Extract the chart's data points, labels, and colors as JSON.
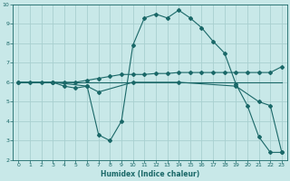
{
  "xlabel": "Humidex (Indice chaleur)",
  "ylabel": "",
  "bg_color": "#c8e8e8",
  "grid_color": "#a8d0d0",
  "line_color": "#1a6868",
  "xlim": [
    -0.5,
    23.5
  ],
  "ylim": [
    2,
    10
  ],
  "xticks": [
    0,
    1,
    2,
    3,
    4,
    5,
    6,
    7,
    8,
    9,
    10,
    11,
    12,
    13,
    14,
    15,
    16,
    17,
    18,
    19,
    20,
    21,
    22,
    23
  ],
  "yticks": [
    2,
    3,
    4,
    5,
    6,
    7,
    8,
    9,
    10
  ],
  "line1_x": [
    0,
    1,
    2,
    3,
    4,
    5,
    6,
    7,
    8,
    9,
    10,
    11,
    12,
    13,
    14,
    15,
    16,
    17,
    18,
    19,
    20,
    21,
    22,
    23
  ],
  "line1_y": [
    6,
    6,
    6,
    6,
    6,
    6,
    6,
    6,
    6,
    6,
    6,
    6,
    6,
    6,
    6,
    6,
    6,
    6,
    6,
    6,
    6,
    6,
    6,
    6
  ],
  "line2_x": [
    0,
    1,
    2,
    3,
    4,
    5,
    6,
    7,
    8,
    9,
    10,
    11,
    12,
    13,
    14,
    15,
    16,
    17,
    18,
    19,
    20,
    21,
    22,
    23
  ],
  "line2_y": [
    6.0,
    6.0,
    6.0,
    6.0,
    6.0,
    6.0,
    6.1,
    6.2,
    6.3,
    6.4,
    6.4,
    6.4,
    6.45,
    6.45,
    6.5,
    6.5,
    6.5,
    6.5,
    6.5,
    6.5,
    6.5,
    6.5,
    6.5,
    6.8
  ],
  "line3_x": [
    3,
    4,
    5,
    6,
    7,
    8,
    9,
    10,
    11,
    12,
    13,
    14,
    15,
    16,
    17,
    18,
    19,
    20,
    21,
    22,
    23
  ],
  "line3_y": [
    6.0,
    5.8,
    5.7,
    5.8,
    3.3,
    3.0,
    4.0,
    7.9,
    9.3,
    9.5,
    9.3,
    9.7,
    9.3,
    8.8,
    8.1,
    7.5,
    5.9,
    4.8,
    3.2,
    2.4,
    2.4
  ],
  "line4_x": [
    0,
    3,
    6,
    7,
    10,
    14,
    19,
    21,
    22,
    23
  ],
  "line4_y": [
    6.0,
    6.0,
    5.8,
    5.5,
    6.0,
    6.0,
    5.8,
    5.0,
    4.8,
    2.4
  ]
}
